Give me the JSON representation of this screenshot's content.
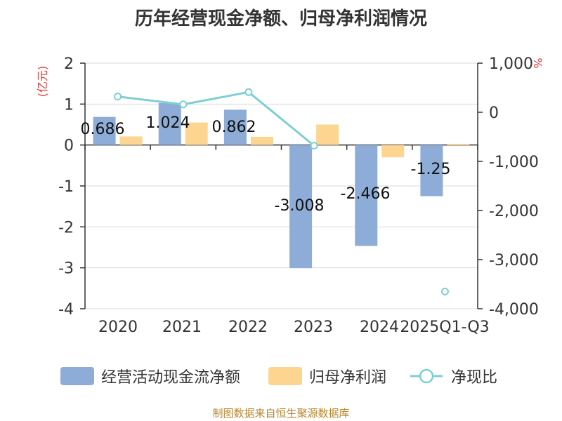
{
  "title": "历年经营现金净额、归母净利润情况",
  "source": "制图数据来自恒生聚源数据库",
  "left_axis_unit": "(亿元)",
  "right_axis_unit": "%",
  "legend": {
    "cash_flow": "经营活动现金流净额",
    "net_profit": "归母净利润",
    "ratio": "净现比"
  },
  "colors": {
    "cash_flow": "#8eacd8",
    "net_profit": "#fdd591",
    "ratio": "#7ecfd2",
    "left_unit": "#e23b3b"
  },
  "chart_data": {
    "type": "bar",
    "title": "历年经营现金净额、归母净利润情况",
    "categories": [
      "2020",
      "2021",
      "2022",
      "2023",
      "2024",
      "2025Q1-Q3"
    ],
    "series": [
      {
        "name": "经营活动现金流净额",
        "axis": "left",
        "type": "bar",
        "values": [
          0.686,
          1.024,
          0.862,
          -3.008,
          -2.466,
          -1.25
        ],
        "labels": [
          "0.686",
          "1.024",
          "0.862",
          "-3.008",
          "-2.466",
          "-1.25"
        ]
      },
      {
        "name": "归母净利润",
        "axis": "left",
        "type": "bar",
        "values": [
          0.21,
          0.55,
          0.2,
          0.5,
          -0.3,
          0.03
        ]
      },
      {
        "name": "净现比",
        "axis": "right",
        "type": "line",
        "values": [
          320,
          160,
          410,
          -680,
          null,
          -3650
        ]
      }
    ],
    "left_axis": {
      "min": -4,
      "max": 2,
      "ticks": [
        2,
        1,
        0,
        -1,
        -2,
        -3,
        -4
      ],
      "tick_labels": [
        "2",
        "1",
        "0",
        "-1",
        "-2",
        "-3",
        "-4"
      ]
    },
    "right_axis": {
      "min": -4000,
      "max": 1000,
      "ticks": [
        1000,
        0,
        -1000,
        -2000,
        -3000,
        -4000
      ],
      "tick_labels": [
        "1,000",
        "0",
        "-1,000",
        "-2,000",
        "-3,000",
        "-4,000"
      ]
    }
  }
}
